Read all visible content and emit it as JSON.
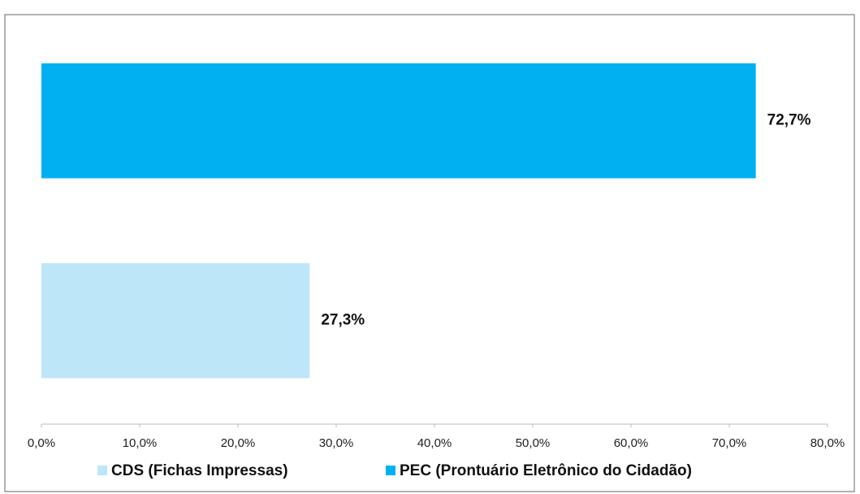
{
  "chart_data": {
    "type": "bar",
    "orientation": "horizontal",
    "series": [
      {
        "name": "CDS (Fichas Impressas)",
        "color": "#bde6f8",
        "values": [
          27.3
        ],
        "value_labels": [
          "27,3%"
        ]
      },
      {
        "name": "PEC (Prontuário Eletrônico do Cidadão)",
        "color": "#00b0f0",
        "values": [
          72.7
        ],
        "value_labels": [
          "72,7%"
        ]
      }
    ],
    "xlim": [
      0,
      80
    ],
    "xticks": [
      {
        "value": 0,
        "label": "0,0%"
      },
      {
        "value": 10,
        "label": "10,0%"
      },
      {
        "value": 20,
        "label": "20,0%"
      },
      {
        "value": 30,
        "label": "30,0%"
      },
      {
        "value": 40,
        "label": "40,0%"
      },
      {
        "value": 50,
        "label": "50,0%"
      },
      {
        "value": 60,
        "label": "60,0%"
      },
      {
        "value": 70,
        "label": "70,0%"
      },
      {
        "value": 80,
        "label": "80,0%"
      }
    ],
    "legend": "bottom"
  }
}
